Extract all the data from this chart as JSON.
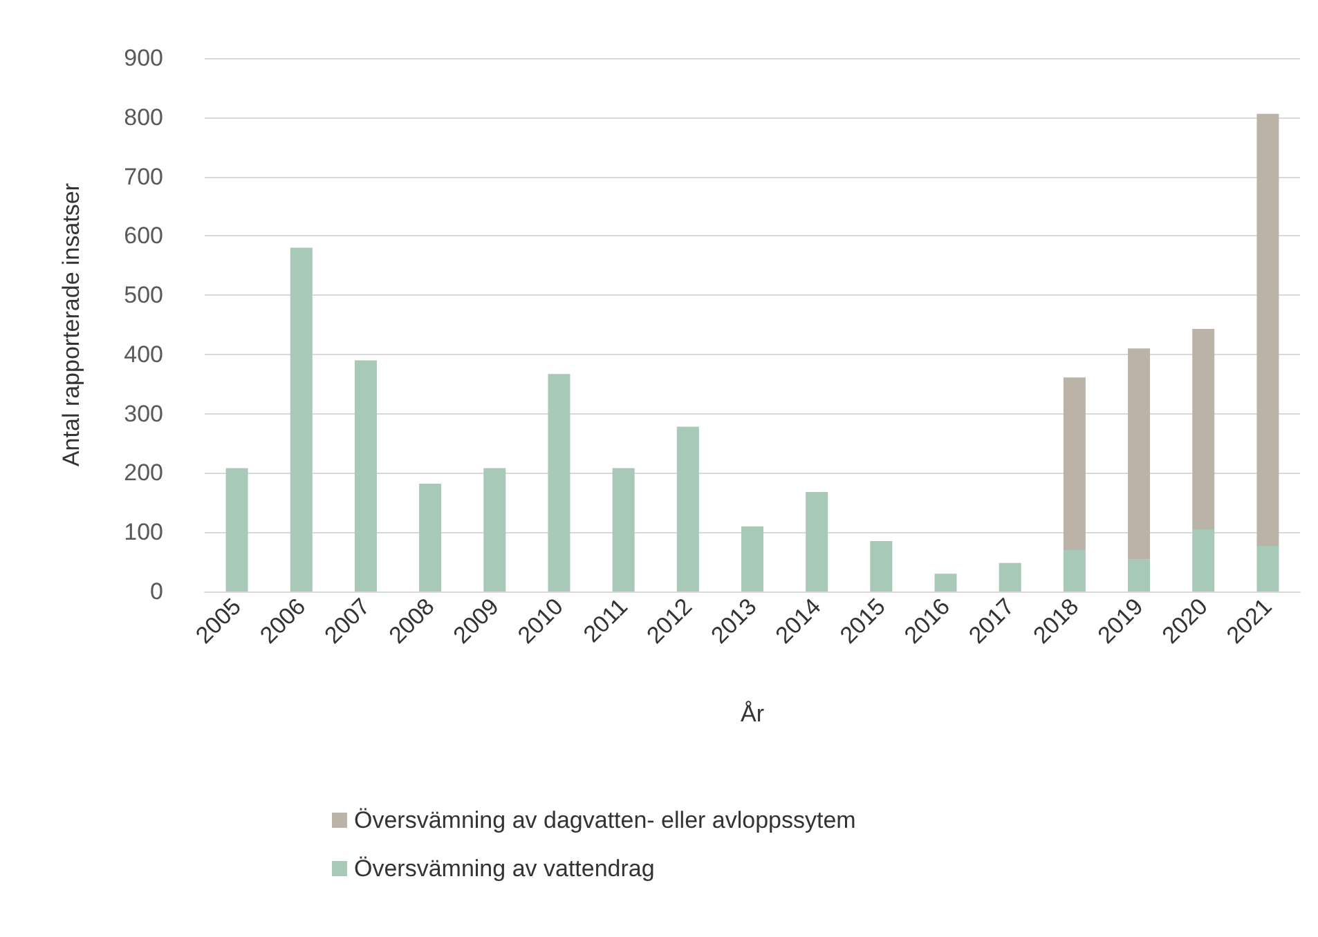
{
  "chart_data": {
    "type": "bar",
    "stacked": true,
    "xlabel": "År",
    "ylabel": "Antal rapporterade insatser",
    "categories": [
      "2005",
      "2006",
      "2007",
      "2008",
      "2009",
      "2010",
      "2011",
      "2012",
      "2013",
      "2014",
      "2015",
      "2016",
      "2017",
      "2018",
      "2019",
      "2020",
      "2021"
    ],
    "series": [
      {
        "name": "Översvämning av vattendrag",
        "color": "#a8c8b8",
        "values": [
          208,
          580,
          390,
          182,
          208,
          367,
          208,
          278,
          110,
          168,
          85,
          30,
          48,
          70,
          54,
          105,
          77
        ]
      },
      {
        "name": "Översvämning av dagvatten- eller avloppssytem",
        "color": "#bcb3a8",
        "values": [
          null,
          null,
          null,
          null,
          null,
          null,
          null,
          null,
          null,
          null,
          null,
          null,
          null,
          291,
          356,
          338,
          729
        ]
      }
    ],
    "ylim": [
      0,
      900
    ],
    "yticks": [
      0,
      100,
      200,
      300,
      400,
      500,
      600,
      700,
      800,
      900
    ],
    "grid": "y",
    "legend": "bottom"
  }
}
